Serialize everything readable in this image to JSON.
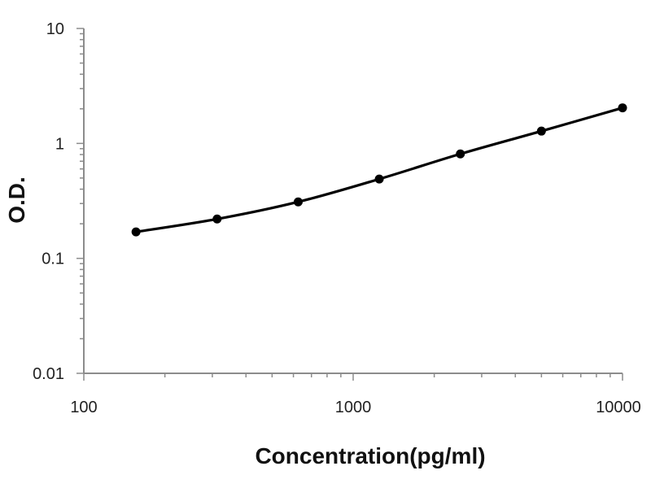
{
  "chart_data": {
    "type": "line",
    "title": "",
    "xlabel": "Concentration(pg/ml)",
    "ylabel": "O.D.",
    "x_scale": "log",
    "y_scale": "log",
    "xlim": [
      100,
      10000
    ],
    "ylim": [
      0.01,
      10
    ],
    "x_ticks": [
      {
        "value": 100,
        "label": "100"
      },
      {
        "value": 1000,
        "label": "1000"
      },
      {
        "value": 10000,
        "label": "10000"
      }
    ],
    "y_ticks": [
      {
        "value": 0.01,
        "label": "0.01"
      },
      {
        "value": 0.1,
        "label": "0.1"
      },
      {
        "value": 1,
        "label": "1"
      },
      {
        "value": 10,
        "label": "10"
      }
    ],
    "grid": false,
    "legend": "none",
    "series": [
      {
        "color": "#000000",
        "x": [
          156.25,
          312.5,
          625,
          1250,
          2500,
          5000,
          10000
        ],
        "y": [
          0.17,
          0.22,
          0.31,
          0.49,
          0.81,
          1.28,
          2.04
        ]
      }
    ]
  }
}
